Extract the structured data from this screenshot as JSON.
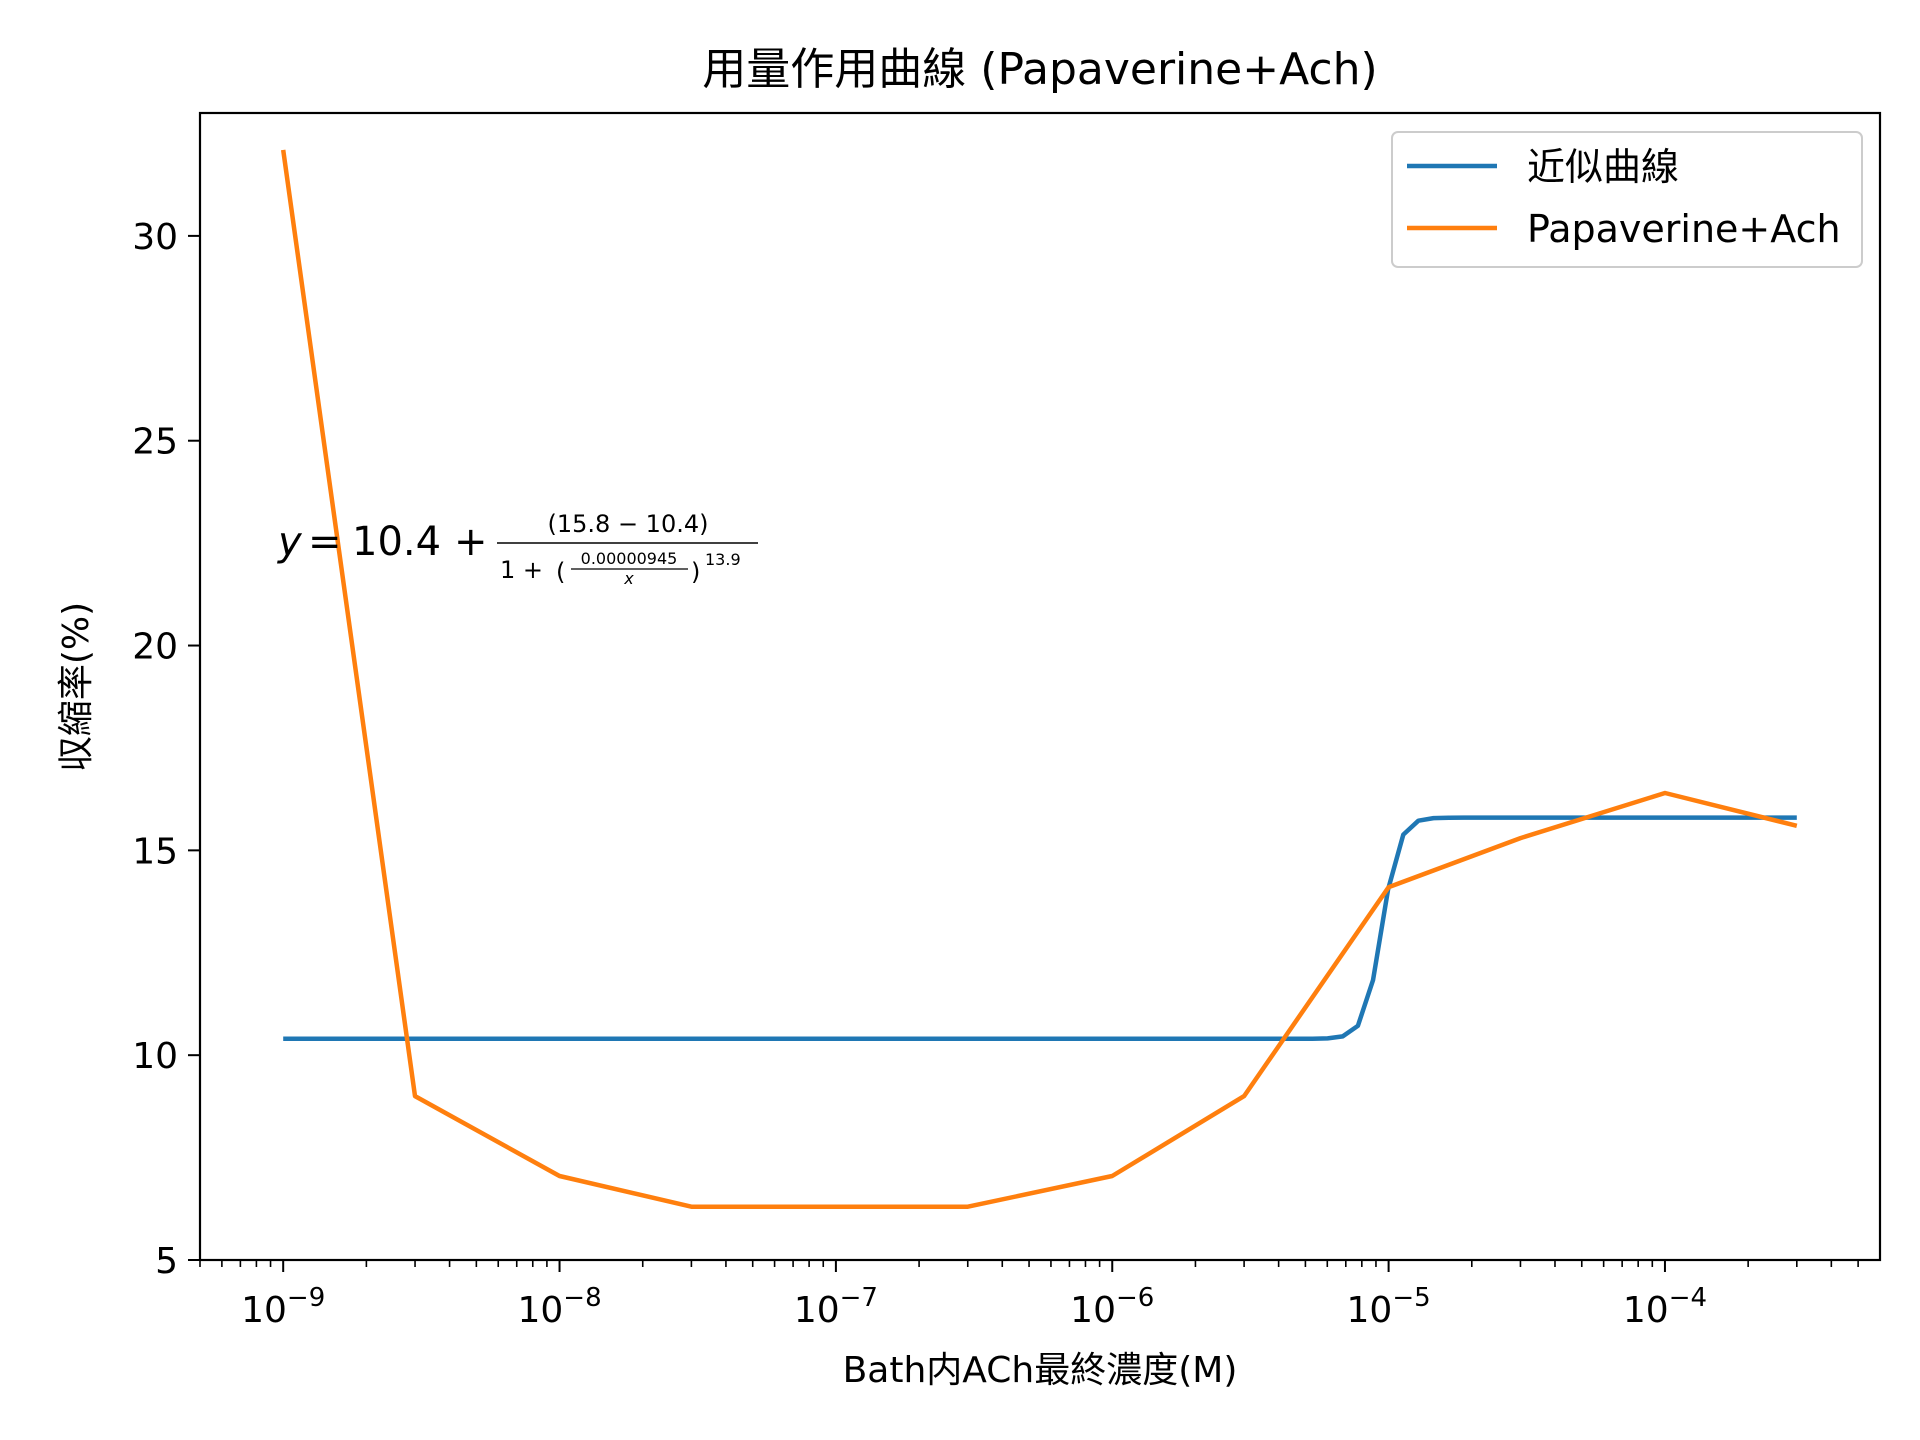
{
  "chart_data": {
    "type": "line",
    "title": "用量作用曲線 (Papaverine+Ach)",
    "xlabel": "Bath内ACh最終濃度(M)",
    "ylabel": "収縮率(%)",
    "xscale": "log",
    "xlim": [
      5e-10,
      0.0006
    ],
    "ylim": [
      5,
      33
    ],
    "x_ticks": [
      1e-09,
      1e-08,
      1e-07,
      1e-06,
      1e-05,
      0.0001
    ],
    "x_tick_labels": [
      {
        "base": "10",
        "exp": "−9"
      },
      {
        "base": "10",
        "exp": "−8"
      },
      {
        "base": "10",
        "exp": "−7"
      },
      {
        "base": "10",
        "exp": "−6"
      },
      {
        "base": "10",
        "exp": "−5"
      },
      {
        "base": "10",
        "exp": "−4"
      }
    ],
    "y_ticks": [
      5,
      10,
      15,
      20,
      25,
      30
    ],
    "y_tick_labels": [
      "5",
      "10",
      "15",
      "20",
      "25",
      "30"
    ],
    "grid": false,
    "legend": "top-right",
    "series": [
      {
        "name": "近似曲線",
        "color": "#1f77b4",
        "kind": "fit",
        "bottom": 10.4,
        "top": 15.8,
        "ec50": 9.45e-06,
        "hill": 13.9,
        "x_range": [
          1e-09,
          0.0003
        ]
      },
      {
        "name": "Papaverine+Ach",
        "color": "#ff7f0e",
        "kind": "data",
        "x": [
          1e-09,
          3e-09,
          1e-08,
          3e-08,
          1e-07,
          3e-07,
          1e-06,
          3e-06,
          1e-05,
          3e-05,
          0.0001,
          0.0003
        ],
        "y": [
          32.1,
          9.0,
          7.05,
          6.3,
          6.3,
          6.3,
          7.05,
          9.0,
          14.1,
          15.3,
          16.4,
          15.6
        ]
      }
    ],
    "annotation": {
      "y_var": "y",
      "equals": "=",
      "base": "10.4",
      "plus": "+",
      "numerator": "(15.8 − 10.4)",
      "denominator_prefix": "1 +",
      "inner_num": "0.00000945",
      "inner_den": "x",
      "exponent": "13.9"
    }
  }
}
